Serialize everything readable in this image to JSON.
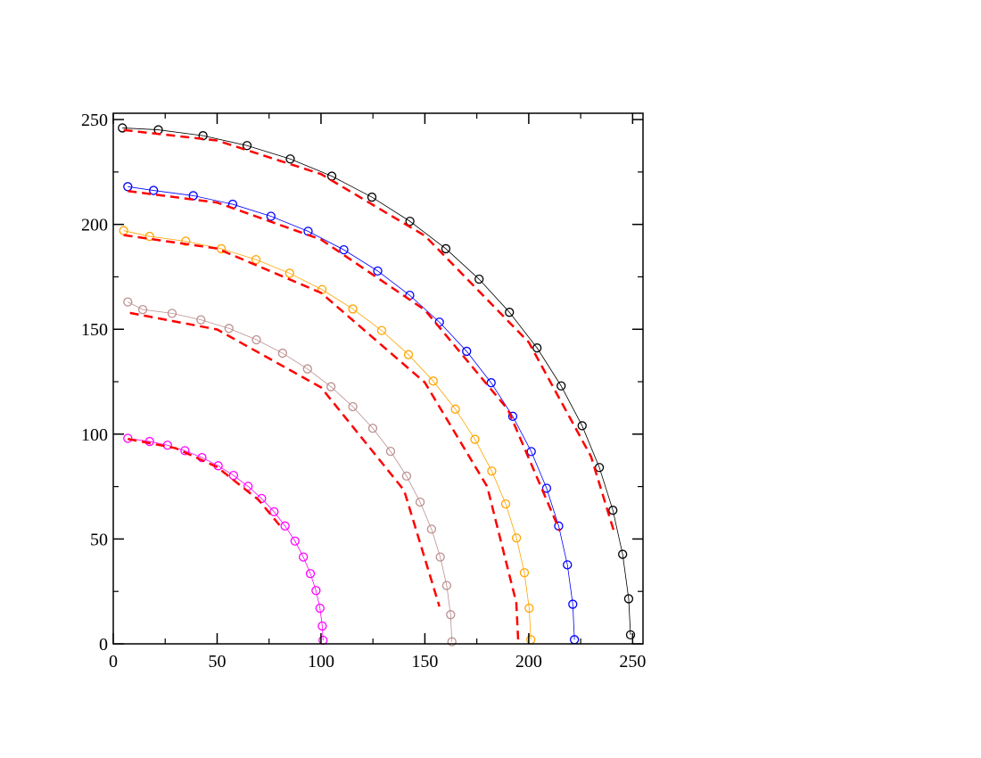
{
  "chart_data": {
    "type": "line",
    "xlim": [
      0,
      255
    ],
    "ylim": [
      0,
      253
    ],
    "xticks": [
      0,
      50,
      100,
      150,
      200,
      250
    ],
    "yticks": [
      0,
      50,
      100,
      150,
      200,
      250
    ],
    "xminorticks": [
      25,
      75,
      125,
      175,
      225
    ],
    "yminorticks": [
      25,
      75,
      125,
      175,
      225
    ],
    "series": [
      {
        "color": "#000000",
        "marker": "circle",
        "x": [
          4.4,
          21.7,
          43.2,
          64.4,
          85.2,
          105.2,
          124.5,
          142.8,
          160.1,
          176.1,
          190.7,
          204.0,
          215.6,
          225.7,
          234.0,
          240.5,
          245.2,
          248.1,
          249
        ],
        "values": [
          246,
          245.1,
          242.3,
          237.6,
          231.2,
          223.0,
          213.0,
          201.5,
          188.4,
          173.9,
          158.1,
          141.1,
          123,
          104,
          84.1,
          63.7,
          42.7,
          21.5,
          4.3
        ]
      },
      {
        "color": "#0000ff",
        "marker": "circle",
        "x": [
          7,
          19.4,
          38.5,
          57.5,
          75.9,
          93.8,
          111,
          127.3,
          142.7,
          157,
          170.1,
          181.9,
          192.3,
          201.2,
          208.6,
          214.4,
          218.6,
          221.2,
          222
        ],
        "values": [
          218,
          216.2,
          213.7,
          209.6,
          203.9,
          196.7,
          187.9,
          177.8,
          166.2,
          153.4,
          139.5,
          124.5,
          108.5,
          91.7,
          74.2,
          56.2,
          37.7,
          18.9,
          2
        ]
      },
      {
        "color": "#ffa500",
        "marker": "circle",
        "x": [
          5,
          17.5,
          34.9,
          52,
          68.7,
          84.9,
          100.5,
          115.3,
          129.2,
          142.1,
          154,
          164.7,
          174.1,
          182.2,
          188.9,
          194.1,
          197.9,
          200.2,
          201
        ],
        "values": [
          197,
          194.3,
          192,
          188.4,
          183.2,
          176.7,
          168.9,
          159.7,
          149.4,
          137.9,
          125.3,
          111.9,
          97.5,
          82.4,
          66.7,
          50.5,
          33.9,
          17,
          2
        ]
      },
      {
        "color": "#bc8f8f",
        "marker": "circle",
        "x": [
          7,
          14.2,
          28.3,
          42.2,
          55.7,
          68.9,
          81.5,
          93.5,
          104.8,
          115.3,
          124.9,
          133.5,
          141.2,
          147.7,
          153.2,
          157.4,
          160.5,
          162.4,
          163
        ],
        "values": [
          163,
          159.4,
          157.6,
          154.5,
          150.4,
          145,
          138.6,
          131.1,
          122.6,
          113.1,
          102.8,
          91.8,
          80,
          67.6,
          54.7,
          41.4,
          27.8,
          13.9,
          1
        ]
      },
      {
        "color": "#ff00ff",
        "marker": "circle",
        "x": [
          7,
          17.5,
          26.1,
          34.5,
          42.7,
          50.5,
          57.9,
          64.9,
          71.4,
          77.4,
          82.7,
          87.5,
          91.5,
          94.9,
          97.6,
          99.5,
          100.6,
          101
        ],
        "values": [
          98,
          96.5,
          94.7,
          92.1,
          88.8,
          84.9,
          80.3,
          75.1,
          69.3,
          63,
          56.2,
          49,
          41.4,
          33.5,
          25.4,
          17,
          8.5,
          1.7
        ]
      },
      {
        "color": "#ff0000",
        "style": "dashed",
        "x": [
          5,
          50,
          100,
          150,
          200,
          230,
          241
        ],
        "values": [
          245,
          240,
          224,
          194.6,
          143.8,
          89.3,
          53.7
        ]
      },
      {
        "color": "#ff0000",
        "style": "dashed",
        "x": [
          7,
          50,
          100,
          150,
          190,
          215
        ],
        "values": [
          215.9,
          210.4,
          192.8,
          159.2,
          111.7,
          53.8
        ]
      },
      {
        "color": "#ff0000",
        "style": "dashed",
        "x": [
          5,
          50,
          100,
          150,
          180,
          194,
          195
        ],
        "values": [
          194.9,
          188.5,
          167.4,
          124.6,
          75,
          19.7,
          0
        ]
      },
      {
        "color": "#ff0000",
        "style": "dashed",
        "x": [
          8,
          50,
          100,
          140,
          157
        ],
        "values": [
          157.8,
          149.9,
          122.3,
          73.2,
          17.8
        ]
      },
      {
        "color": "#ff0000",
        "style": "dashed",
        "x": [
          7,
          30,
          50,
          70,
          80
        ],
        "values": [
          97.7,
          93.3,
          84.3,
          68.6,
          56.6
        ]
      }
    ]
  }
}
